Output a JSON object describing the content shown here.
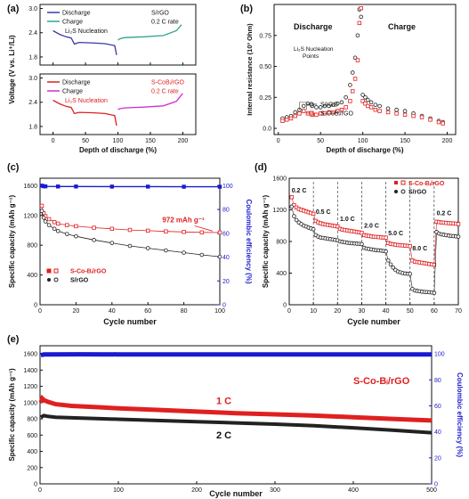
{
  "chart_data": [
    {
      "id": "a",
      "panel_label": "(a)",
      "type": "line",
      "ylabel": "Voltage (V vs. Li⁺/Li)",
      "xlabel": "Depth of discharge (%)",
      "xlim": [
        -20,
        220
      ],
      "xticks": [
        "0",
        "50",
        "100",
        "150",
        "200"
      ],
      "upper": {
        "ylim": [
          1.6,
          3.1
        ],
        "yticks": [
          "1.8",
          "2.4",
          "3.0"
        ],
        "legend": [
          "Discharge",
          "Charge"
        ],
        "note_title": "S/rGO",
        "note_rate": "0.2 C rate",
        "annotation": "Li₂S Nucleation",
        "colors": {
          "discharge": "#3a3aa0",
          "charge": "#2fa58c"
        },
        "discharge": {
          "x": [
            0,
            10,
            20,
            28,
            33,
            40,
            60,
            80,
            95,
            98
          ],
          "y": [
            2.45,
            2.36,
            2.3,
            2.27,
            2.12,
            2.16,
            2.15,
            2.13,
            2.08,
            1.85
          ]
        },
        "charge": {
          "x": [
            100,
            103,
            110,
            140,
            170,
            190,
            198
          ],
          "y": [
            2.22,
            2.25,
            2.28,
            2.3,
            2.33,
            2.45,
            2.6
          ]
        }
      },
      "lower": {
        "ylim": [
          1.6,
          3.1
        ],
        "yticks": [
          "1.8",
          "2.4",
          "3.0"
        ],
        "legend": [
          "Discharge",
          "Charge"
        ],
        "note_title": "S-CoBᵢ/rGO",
        "note_rate": "0.2 C rate",
        "annotation": "Li₂S Nucleation",
        "colors": {
          "discharge": "#e02020",
          "charge": "#d030d0"
        },
        "discharge": {
          "x": [
            0,
            10,
            20,
            28,
            33,
            40,
            60,
            80,
            95,
            98
          ],
          "y": [
            2.45,
            2.36,
            2.3,
            2.27,
            2.12,
            2.15,
            2.14,
            2.12,
            2.07,
            1.82
          ]
        },
        "charge": {
          "x": [
            100,
            103,
            110,
            140,
            170,
            190,
            200
          ],
          "y": [
            2.22,
            2.24,
            2.26,
            2.28,
            2.31,
            2.42,
            2.62
          ]
        }
      }
    },
    {
      "id": "b",
      "panel_label": "(b)",
      "type": "scatter",
      "ylabel": "Internal resistance (10³ Ohm)",
      "xlabel": "Depth of discharge (%)",
      "xlim": [
        -5,
        210
      ],
      "ylim": [
        -0.05,
        1.0
      ],
      "xticks": [
        "0",
        "50",
        "100",
        "150",
        "200"
      ],
      "yticks": [
        "0.0",
        "0.25",
        "0.50",
        "0.75"
      ],
      "region_labels": [
        "Discharge",
        "Charge"
      ],
      "annotation": "Li₂S Nucleation Points",
      "series": [
        {
          "name": "S/rGO",
          "color": "#222222",
          "x": [
            5,
            10,
            15,
            20,
            25,
            30,
            35,
            40,
            45,
            50,
            55,
            60,
            65,
            70,
            75,
            80,
            85,
            88,
            91,
            94,
            96,
            98,
            100,
            103,
            106,
            110,
            115,
            120,
            130,
            140,
            150,
            160,
            170,
            180,
            190,
            195
          ],
          "y": [
            0.08,
            0.09,
            0.1,
            0.13,
            0.15,
            0.18,
            0.2,
            0.18,
            0.17,
            0.17,
            0.18,
            0.18,
            0.19,
            0.2,
            0.21,
            0.25,
            0.35,
            0.45,
            0.57,
            0.75,
            0.96,
            0.9,
            0.27,
            0.25,
            0.23,
            0.21,
            0.19,
            0.18,
            0.16,
            0.15,
            0.14,
            0.12,
            0.1,
            0.08,
            0.06,
            0.05
          ]
        },
        {
          "name": "S-CoBᵢ/rGO",
          "color": "#e02020",
          "x": [
            5,
            10,
            15,
            20,
            25,
            30,
            35,
            40,
            45,
            50,
            55,
            60,
            65,
            70,
            75,
            80,
            85,
            88,
            91,
            94,
            96,
            98,
            100,
            103,
            106,
            110,
            115,
            120,
            130,
            140,
            150,
            160,
            170,
            180,
            190,
            195
          ],
          "y": [
            0.06,
            0.07,
            0.08,
            0.1,
            0.12,
            0.14,
            0.12,
            0.11,
            0.11,
            0.12,
            0.12,
            0.13,
            0.13,
            0.14,
            0.15,
            0.17,
            0.22,
            0.3,
            0.4,
            0.55,
            0.85,
            0.97,
            0.22,
            0.2,
            0.18,
            0.17,
            0.15,
            0.14,
            0.13,
            0.12,
            0.11,
            0.1,
            0.09,
            0.07,
            0.05,
            0.04
          ]
        }
      ]
    },
    {
      "id": "c",
      "panel_label": "(c)",
      "type": "line",
      "ylabel": "Specific capacity (mAh g⁻¹)",
      "xlabel": "Cycle number",
      "y2label": "Coulombic efficiency (%)",
      "xlim": [
        0,
        100
      ],
      "ylim": [
        0,
        1700
      ],
      "y2lim": [
        0,
        106.25
      ],
      "xticks": [
        "0",
        "20",
        "40",
        "60",
        "80",
        "100"
      ],
      "yticks": [
        "0",
        "400",
        "800",
        "1200",
        "1600"
      ],
      "y2ticks": [
        "0",
        "20",
        "40",
        "60",
        "80",
        "100"
      ],
      "annotation": "972 mAh g⁻¹",
      "legend": [
        "S-Co-Bᵢ/rGO",
        "S/rGO"
      ],
      "series": [
        {
          "name": "S-Co-Bᵢ/rGO",
          "color": "#e02020",
          "x": [
            1,
            2,
            3,
            5,
            8,
            10,
            15,
            20,
            30,
            40,
            50,
            60,
            70,
            80,
            90,
            100
          ],
          "y": [
            1330,
            1230,
            1190,
            1150,
            1110,
            1090,
            1070,
            1055,
            1035,
            1020,
            1005,
            995,
            985,
            978,
            972,
            970
          ]
        },
        {
          "name": "S/rGO",
          "color": "#222222",
          "x": [
            1,
            2,
            3,
            5,
            8,
            10,
            15,
            20,
            30,
            40,
            50,
            60,
            70,
            80,
            90,
            100
          ],
          "y": [
            1260,
            1170,
            1120,
            1070,
            1020,
            990,
            950,
            920,
            870,
            830,
            790,
            760,
            730,
            700,
            670,
            645
          ]
        },
        {
          "name": "CE",
          "color": "#1a1ad0",
          "axis": "right",
          "x": [
            1,
            2,
            3,
            10,
            20,
            40,
            60,
            80,
            100
          ],
          "y": [
            100,
            99.5,
            99.4,
            99.3,
            99.3,
            99.2,
            99.2,
            99.1,
            99.1
          ]
        }
      ]
    },
    {
      "id": "d",
      "panel_label": "(d)",
      "type": "line",
      "ylabel": "Specific capacity (mAh g⁻¹)",
      "xlabel": "Cycle number",
      "xlim": [
        0,
        70
      ],
      "ylim": [
        0,
        1600
      ],
      "xticks": [
        "0",
        "10",
        "20",
        "30",
        "40",
        "50",
        "60",
        "70"
      ],
      "yticks": [
        "0",
        "400",
        "800",
        "1200",
        "1600"
      ],
      "rate_labels": [
        "0.2 C",
        "0.5 C",
        "1.0 C",
        "2.0 C",
        "5.0 C",
        "8.0 C",
        "0.2 C"
      ],
      "legend": [
        "S-Co-Bᵢ/rGO",
        "S/rGO"
      ],
      "series": [
        {
          "name": "S-Co-Bᵢ/rGO",
          "color": "#e02020",
          "x": [
            1,
            2,
            3,
            4,
            5,
            6,
            7,
            8,
            9,
            10,
            11,
            12,
            13,
            14,
            15,
            16,
            17,
            18,
            19,
            20,
            21,
            22,
            23,
            24,
            25,
            26,
            27,
            28,
            29,
            30,
            31,
            32,
            33,
            34,
            35,
            36,
            37,
            38,
            39,
            40,
            41,
            42,
            43,
            44,
            45,
            46,
            47,
            48,
            49,
            50,
            51,
            52,
            53,
            54,
            55,
            56,
            57,
            58,
            59,
            60,
            61,
            62,
            63,
            64,
            65,
            66,
            67,
            68,
            69,
            70
          ],
          "y": [
            1360,
            1260,
            1230,
            1210,
            1200,
            1190,
            1180,
            1170,
            1160,
            1150,
            1060,
            1040,
            1030,
            1020,
            1015,
            1010,
            1005,
            1000,
            995,
            990,
            960,
            950,
            945,
            940,
            935,
            930,
            925,
            920,
            915,
            910,
            880,
            875,
            870,
            865,
            860,
            858,
            855,
            852,
            850,
            848,
            780,
            770,
            765,
            760,
            755,
            752,
            750,
            748,
            745,
            740,
            560,
            545,
            540,
            535,
            530,
            525,
            520,
            515,
            510,
            505,
            1050,
            1045,
            1040,
            1038,
            1035,
            1032,
            1030,
            1028,
            1025,
            1020
          ]
        },
        {
          "name": "S/rGO",
          "color": "#222222",
          "x": [
            1,
            2,
            3,
            4,
            5,
            6,
            7,
            8,
            9,
            10,
            11,
            12,
            13,
            14,
            15,
            16,
            17,
            18,
            19,
            20,
            21,
            22,
            23,
            24,
            25,
            26,
            27,
            28,
            29,
            30,
            31,
            32,
            33,
            34,
            35,
            36,
            37,
            38,
            39,
            40,
            41,
            42,
            43,
            44,
            45,
            46,
            47,
            48,
            49,
            50,
            51,
            52,
            53,
            54,
            55,
            56,
            57,
            58,
            59,
            60,
            61,
            62,
            63,
            64,
            65,
            66,
            67,
            68,
            69,
            70
          ],
          "y": [
            1240,
            1120,
            1070,
            1040,
            1020,
            1000,
            990,
            975,
            965,
            955,
            880,
            860,
            850,
            845,
            840,
            835,
            830,
            825,
            820,
            815,
            800,
            795,
            790,
            785,
            780,
            778,
            775,
            772,
            770,
            768,
            720,
            710,
            705,
            700,
            695,
            690,
            688,
            685,
            680,
            675,
            560,
            510,
            470,
            440,
            420,
            410,
            400,
            395,
            392,
            390,
            200,
            180,
            175,
            170,
            165,
            162,
            160,
            158,
            155,
            150,
            920,
            900,
            890,
            885,
            880,
            875,
            870,
            868,
            865,
            860
          ]
        }
      ]
    },
    {
      "id": "e",
      "panel_label": "(e)",
      "type": "line",
      "ylabel": "Specific capacity (mAh g⁻¹)",
      "xlabel": "Cycle number",
      "y2label": "Coulombic efficiency (%)",
      "xlim": [
        0,
        500
      ],
      "ylim": [
        0,
        1700
      ],
      "y2lim": [
        0,
        106.25
      ],
      "xticks": [
        "0",
        "100",
        "200",
        "300",
        "400",
        "500"
      ],
      "yticks": [
        "0",
        "200",
        "400",
        "600",
        "800",
        "1000",
        "1200",
        "1400",
        "1600"
      ],
      "y2ticks": [
        "0",
        "20",
        "40",
        "60",
        "80",
        "100"
      ],
      "labels": [
        "S-Co-Bᵢ/rGO",
        "1 C",
        "2 C"
      ],
      "series": [
        {
          "name": "1 C",
          "color": "#e02020",
          "x": [
            1,
            3,
            5,
            10,
            20,
            40,
            60,
            80,
            100,
            150,
            200,
            250,
            300,
            350,
            400,
            450,
            500
          ],
          "y": [
            1000,
            1050,
            1030,
            1010,
            980,
            960,
            950,
            940,
            930,
            910,
            890,
            870,
            855,
            840,
            820,
            800,
            780
          ]
        },
        {
          "name": "2 C",
          "color": "#222222",
          "x": [
            1,
            5,
            10,
            20,
            50,
            100,
            150,
            200,
            250,
            300,
            350,
            400,
            450,
            500
          ],
          "y": [
            820,
            840,
            830,
            820,
            810,
            795,
            780,
            765,
            750,
            735,
            715,
            690,
            660,
            630
          ]
        },
        {
          "name": "CE",
          "color": "#1a1ad0",
          "axis": "right",
          "x": [
            1,
            5,
            10,
            50,
            100,
            200,
            300,
            400,
            500
          ],
          "y": [
            99,
            99.5,
            99.6,
            99.7,
            99.6,
            99.6,
            99.5,
            99.5,
            99.5
          ]
        }
      ]
    }
  ]
}
